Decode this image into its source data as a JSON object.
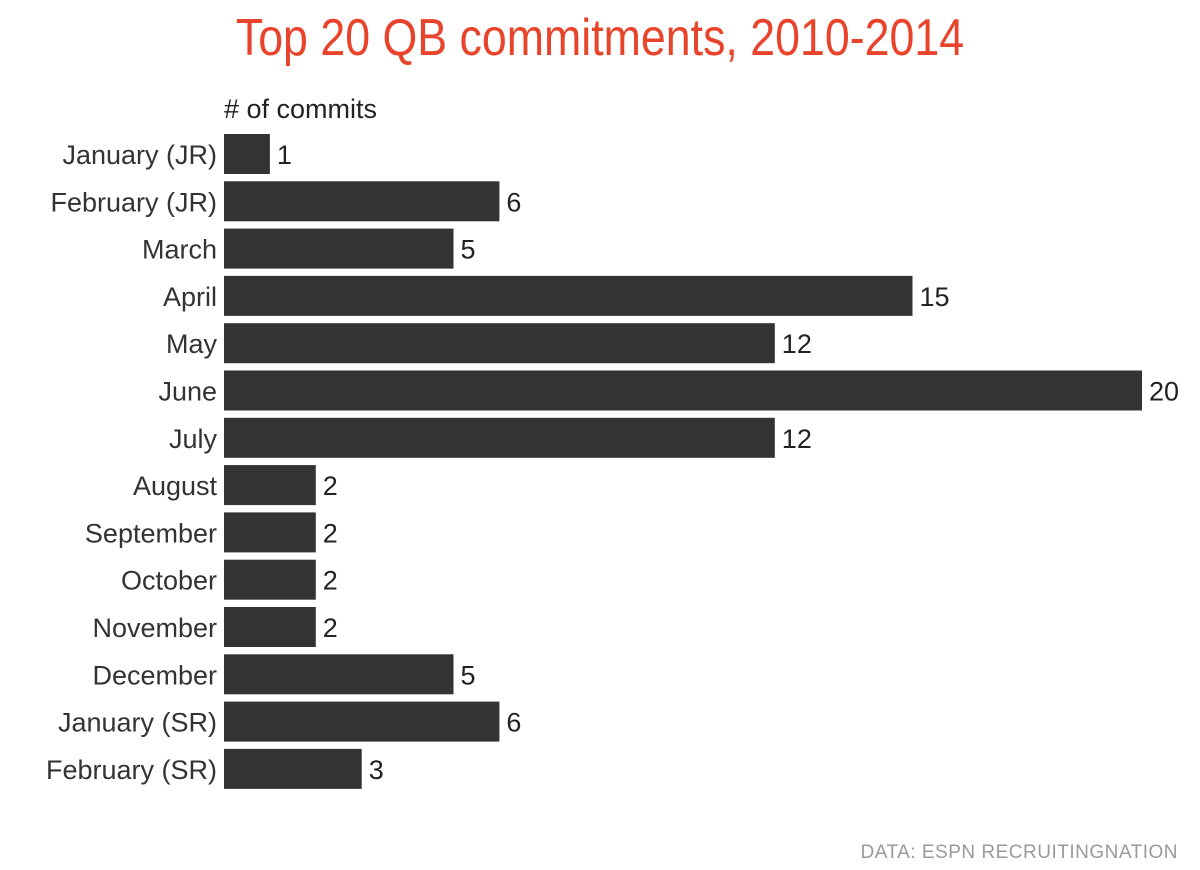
{
  "chart_data": {
    "type": "bar",
    "orientation": "horizontal",
    "title": "Top 20 QB commitments, 2010-2014",
    "xlabel": "# of commits",
    "ylabel": "",
    "categories": [
      "January (JR)",
      "February (JR)",
      "March",
      "April",
      "May",
      "June",
      "July",
      "August",
      "September",
      "October",
      "November",
      "December",
      "January (SR)",
      "February (SR)"
    ],
    "values": [
      1,
      6,
      5,
      15,
      12,
      20,
      12,
      2,
      2,
      2,
      2,
      5,
      6,
      3
    ],
    "xlim": [
      0,
      20
    ],
    "grid": false,
    "legend": "none",
    "data_labels": true
  },
  "source": "DATA: ESPN RECRUITINGNATION",
  "colors": {
    "title": "#e8442c",
    "bar": "#333333",
    "source": "#9a9a9a"
  }
}
